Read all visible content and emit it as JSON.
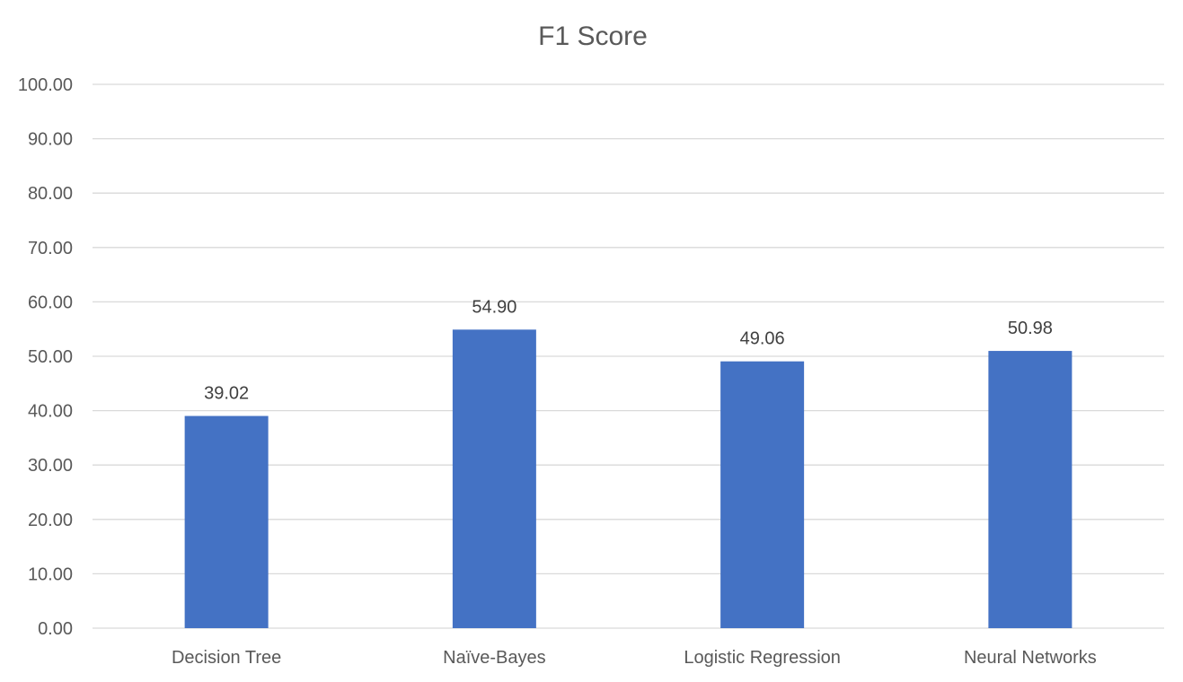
{
  "chart_data": {
    "type": "bar",
    "title": "F1 Score",
    "categories": [
      "Decision Tree",
      "Naïve-Bayes",
      "Logistic Regression",
      "Neural Networks"
    ],
    "values": [
      39.02,
      54.9,
      49.06,
      50.98
    ],
    "data_labels": [
      "39.02",
      "54.90",
      "49.06",
      "50.98"
    ],
    "ylim": [
      0,
      100
    ],
    "y_ticks": [
      "0.00",
      "10.00",
      "20.00",
      "30.00",
      "40.00",
      "50.00",
      "60.00",
      "70.00",
      "80.00",
      "90.00",
      "100.00"
    ],
    "y_tick_values": [
      0,
      10,
      20,
      30,
      40,
      50,
      60,
      70,
      80,
      90,
      100
    ],
    "xlabel": "",
    "ylabel": "",
    "grid": true,
    "legend": "none",
    "bar_color": "#4472C4"
  }
}
